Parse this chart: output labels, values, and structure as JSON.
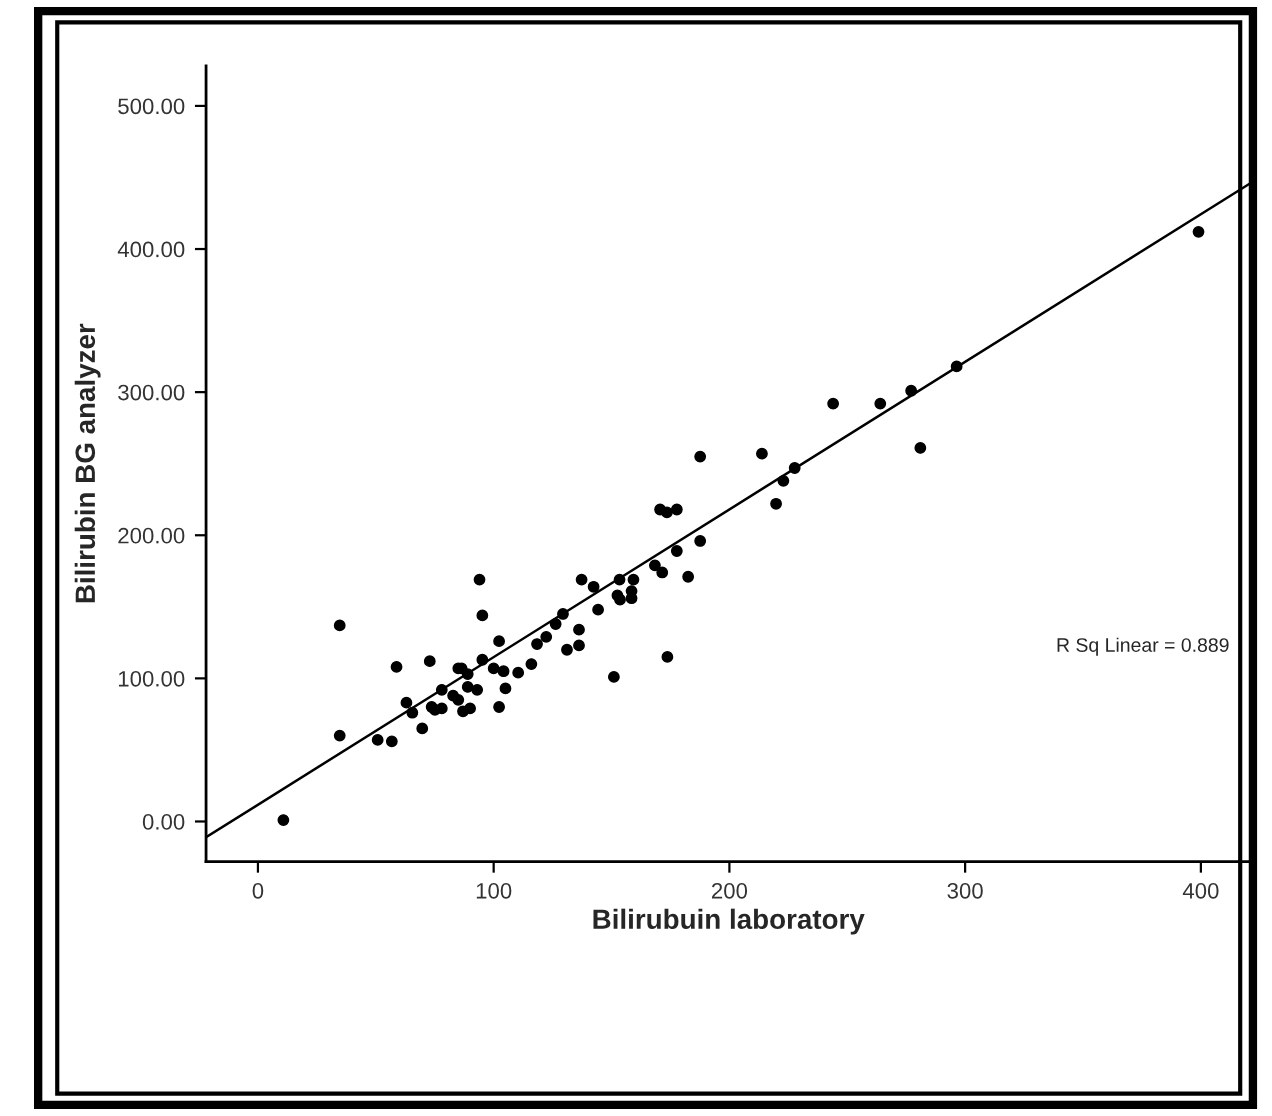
{
  "chart_data": {
    "type": "scatter",
    "xlabel": "Bilirubuin laboratory",
    "ylabel": "Bilirubin BG analyzer",
    "xlim": [
      -22,
      421
    ],
    "ylim": [
      -28,
      528
    ],
    "xticks": [
      0,
      100,
      200,
      300,
      400
    ],
    "yticks": [
      {
        "value": 0,
        "label": "0.00"
      },
      {
        "value": 100,
        "label": "100.00"
      },
      {
        "value": 200,
        "label": "200.00"
      },
      {
        "value": 300,
        "label": "300.00"
      },
      {
        "value": 400,
        "label": "400.00"
      },
      {
        "value": 500,
        "label": "500.00"
      }
    ],
    "grid": false,
    "legend": false,
    "annotations": [
      "R Sq Linear = 0.889"
    ],
    "series": [
      {
        "marker": "circle",
        "color": "#000000",
        "x": [
          10.8,
          34.7,
          34.7,
          50.8,
          56.8,
          58.8,
          63,
          65.5,
          69.7,
          72.9,
          73.7,
          75.1,
          78,
          78,
          82.8,
          85,
          85,
          86.4,
          89,
          89,
          93,
          87,
          90,
          94,
          95.2,
          95.2,
          100,
          102.3,
          104.2,
          102.3,
          105,
          110.4,
          116,
          118.4,
          122.3,
          126.3,
          129.4,
          131.1,
          136.2,
          136.2,
          137.3,
          142.4,
          144.3,
          151,
          152.5,
          153.4,
          153.6,
          158.5,
          158.5,
          159.3,
          168.4,
          171.5,
          170.6,
          173.5,
          173.7,
          177.7,
          177.7,
          182.5,
          187.6,
          187.6,
          213.8,
          219.8,
          222.9,
          227.7,
          244,
          264,
          277.1,
          281,
          296.4,
          399
        ],
        "values": [
          1,
          137,
          60,
          57,
          56,
          108,
          83,
          76,
          65,
          112,
          80,
          78,
          92,
          79,
          88,
          85,
          107,
          107,
          103,
          94,
          92,
          77,
          79,
          169,
          144,
          113,
          107,
          126,
          105,
          80,
          93,
          104,
          110,
          124,
          129,
          138,
          145,
          120,
          123,
          134,
          169,
          164,
          148,
          101,
          158,
          169,
          155,
          161,
          156,
          169,
          179,
          174,
          218,
          216,
          115,
          218,
          189,
          171,
          196,
          255,
          257,
          222,
          238,
          247,
          292,
          292,
          301,
          261,
          318,
          412
        ]
      },
      {
        "type": "line",
        "color": "#000000",
        "x": [
          -22,
          421
        ],
        "values": [
          -11,
          446
        ]
      }
    ]
  }
}
